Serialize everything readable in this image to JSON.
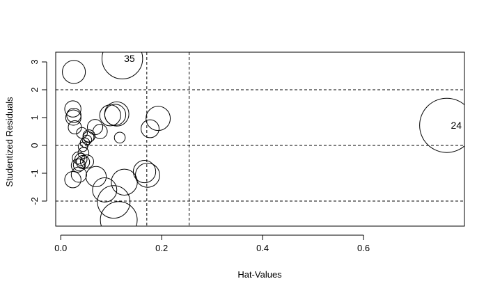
{
  "chart_data": {
    "type": "scatter",
    "title": "",
    "xlabel": "Hat-Values",
    "ylabel": "Studentized Residuals",
    "xlim": [
      -0.01,
      0.8
    ],
    "ylim": [
      -2.9,
      3.35
    ],
    "x_ticks": [
      0.0,
      0.2,
      0.4,
      0.6
    ],
    "x_tick_labels": [
      "0.0",
      "0.2",
      "0.4",
      "0.6"
    ],
    "y_ticks": [
      -2,
      -1,
      0,
      1,
      2,
      3
    ],
    "y_tick_labels": [
      "-2",
      "-1",
      "0",
      "1",
      "2",
      "3"
    ],
    "reference_lines": {
      "horizontal": [
        -2,
        0,
        2
      ],
      "vertical": [
        0.1705,
        0.2545
      ],
      "style": "dashed"
    },
    "bubble_size": "Cook's distance (circle area)",
    "points": [
      {
        "x": 0.765,
        "y": 0.72,
        "size": 1.0,
        "label": "24"
      },
      {
        "x": 0.122,
        "y": 3.12,
        "size": 0.56,
        "label": "35"
      },
      {
        "x": 0.115,
        "y": -2.68,
        "size": 0.46,
        "label": ""
      },
      {
        "x": 0.105,
        "y": -2.03,
        "size": 0.36,
        "label": ""
      },
      {
        "x": 0.026,
        "y": 2.64,
        "size": 0.18,
        "label": ""
      },
      {
        "x": 0.193,
        "y": 0.97,
        "size": 0.2,
        "label": ""
      },
      {
        "x": 0.111,
        "y": 1.13,
        "size": 0.2,
        "label": ""
      },
      {
        "x": 0.172,
        "y": -1.07,
        "size": 0.2,
        "label": ""
      },
      {
        "x": 0.126,
        "y": -1.32,
        "size": 0.23,
        "label": ""
      },
      {
        "x": 0.087,
        "y": -1.6,
        "size": 0.2,
        "label": ""
      },
      {
        "x": 0.166,
        "y": -0.94,
        "size": 0.17,
        "label": ""
      },
      {
        "x": 0.098,
        "y": 1.08,
        "size": 0.15,
        "label": ""
      },
      {
        "x": 0.108,
        "y": 1.1,
        "size": 0.15,
        "label": ""
      },
      {
        "x": 0.07,
        "y": -1.12,
        "size": 0.14,
        "label": ""
      },
      {
        "x": 0.177,
        "y": 0.6,
        "size": 0.11,
        "label": ""
      },
      {
        "x": 0.024,
        "y": 1.31,
        "size": 0.09,
        "label": ""
      },
      {
        "x": 0.025,
        "y": 1.0,
        "size": 0.08,
        "label": ""
      },
      {
        "x": 0.024,
        "y": -1.23,
        "size": 0.09,
        "label": ""
      },
      {
        "x": 0.036,
        "y": -1.05,
        "size": 0.08,
        "label": ""
      },
      {
        "x": 0.068,
        "y": 0.66,
        "size": 0.08,
        "label": ""
      },
      {
        "x": 0.078,
        "y": 0.5,
        "size": 0.07,
        "label": ""
      },
      {
        "x": 0.026,
        "y": 1.08,
        "size": 0.07,
        "label": ""
      },
      {
        "x": 0.028,
        "y": 0.65,
        "size": 0.06,
        "label": ""
      },
      {
        "x": 0.044,
        "y": -0.6,
        "size": 0.06,
        "label": ""
      },
      {
        "x": 0.052,
        "y": -0.58,
        "size": 0.06,
        "label": ""
      },
      {
        "x": 0.034,
        "y": -0.72,
        "size": 0.06,
        "label": ""
      },
      {
        "x": 0.037,
        "y": -0.7,
        "size": 0.05,
        "label": ""
      },
      {
        "x": 0.035,
        "y": -0.45,
        "size": 0.05,
        "label": ""
      },
      {
        "x": 0.04,
        "y": -0.5,
        "size": 0.05,
        "label": ""
      },
      {
        "x": 0.045,
        "y": -0.27,
        "size": 0.04,
        "label": ""
      },
      {
        "x": 0.056,
        "y": 0.34,
        "size": 0.05,
        "label": ""
      },
      {
        "x": 0.055,
        "y": 0.3,
        "size": 0.04,
        "label": ""
      },
      {
        "x": 0.042,
        "y": 0.45,
        "size": 0.04,
        "label": ""
      },
      {
        "x": 0.044,
        "y": -0.05,
        "size": 0.03,
        "label": ""
      },
      {
        "x": 0.048,
        "y": 0.1,
        "size": 0.03,
        "label": ""
      },
      {
        "x": 0.052,
        "y": 0.2,
        "size": 0.03,
        "label": ""
      },
      {
        "x": 0.117,
        "y": 0.28,
        "size": 0.04,
        "label": ""
      }
    ]
  }
}
